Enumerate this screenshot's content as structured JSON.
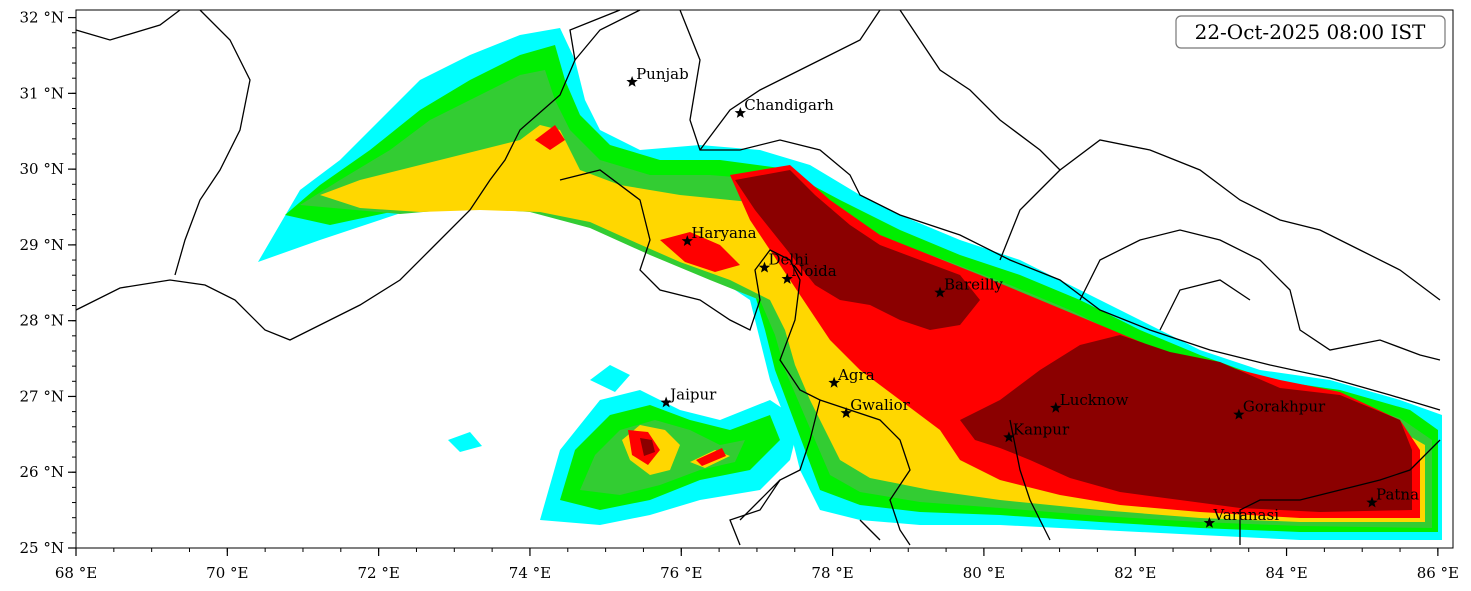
{
  "map": {
    "timestamp": "22-Oct-2025 08:00 IST",
    "colors": {
      "level1": "#00ffff",
      "level2": "#00ee00",
      "level3": "#33cc33",
      "level4": "#ffd700",
      "level5": "#ff0000",
      "level6": "#8b0000",
      "boundary": "#000000",
      "background": "#ffffff"
    },
    "lon_range": [
      68,
      86.2
    ],
    "lat_range": [
      25,
      32.1
    ],
    "x_ticks": [
      {
        "value": 68,
        "label": "68 °E"
      },
      {
        "value": 70,
        "label": "70 °E"
      },
      {
        "value": 72,
        "label": "72 °E"
      },
      {
        "value": 74,
        "label": "74 °E"
      },
      {
        "value": 76,
        "label": "76 °E"
      },
      {
        "value": 78,
        "label": "78 °E"
      },
      {
        "value": 80,
        "label": "80 °E"
      },
      {
        "value": 82,
        "label": "82 °E"
      },
      {
        "value": 84,
        "label": "84 °E"
      },
      {
        "value": 86,
        "label": "86 °E"
      }
    ],
    "y_ticks": [
      {
        "value": 25,
        "label": "25 °N"
      },
      {
        "value": 26,
        "label": "26 °N"
      },
      {
        "value": 27,
        "label": "27 °N"
      },
      {
        "value": 28,
        "label": "28 °N"
      },
      {
        "value": 29,
        "label": "29 °N"
      },
      {
        "value": 30,
        "label": "30 °N"
      },
      {
        "value": 31,
        "label": "31 °N"
      },
      {
        "value": 32,
        "label": "32 °N"
      }
    ],
    "cities": [
      {
        "name": "Punjab",
        "lon": 75.35,
        "lat": 31.15
      },
      {
        "name": "Chandigarh",
        "lon": 76.78,
        "lat": 30.74
      },
      {
        "name": "Haryana",
        "lon": 76.08,
        "lat": 29.05
      },
      {
        "name": "Delhi",
        "lon": 77.1,
        "lat": 28.7
      },
      {
        "name": "Noida",
        "lon": 77.4,
        "lat": 28.55
      },
      {
        "name": "Bareilly",
        "lon": 79.42,
        "lat": 28.37
      },
      {
        "name": "Jaipur",
        "lon": 75.8,
        "lat": 26.92
      },
      {
        "name": "Agra",
        "lon": 78.02,
        "lat": 27.18
      },
      {
        "name": "Gwalior",
        "lon": 78.18,
        "lat": 26.78
      },
      {
        "name": "Lucknow",
        "lon": 80.95,
        "lat": 26.85
      },
      {
        "name": "Kanpur",
        "lon": 80.33,
        "lat": 26.46
      },
      {
        "name": "Gorakhpur",
        "lon": 83.37,
        "lat": 26.76
      },
      {
        "name": "Varanasi",
        "lon": 82.98,
        "lat": 25.33
      },
      {
        "name": "Patna",
        "lon": 85.13,
        "lat": 25.6
      }
    ]
  }
}
